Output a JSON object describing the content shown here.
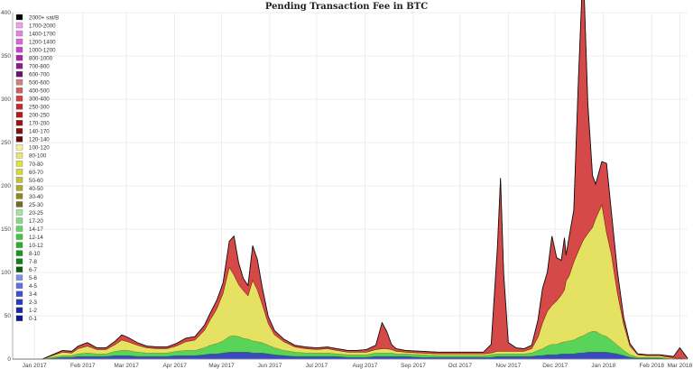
{
  "chart_data": {
    "type": "area",
    "title": "Pending Transaction Fee in BTC",
    "xlabel": "",
    "ylabel": "",
    "ylim": [
      0,
      400
    ],
    "y_ticks": [
      0,
      50,
      100,
      150,
      200,
      250,
      300,
      350,
      400
    ],
    "x_range": [
      "2017-01-01",
      "2018-03-10"
    ],
    "x_tick_labels": [
      {
        "date": "2017-01-15",
        "label": "Jan 2017"
      },
      {
        "date": "2017-02-15",
        "label": "Feb 2017"
      },
      {
        "date": "2017-03-15",
        "label": "Mar 2017"
      },
      {
        "date": "2017-04-15",
        "label": "Apr 2017"
      },
      {
        "date": "2017-05-15",
        "label": "May 2017"
      },
      {
        "date": "2017-06-15",
        "label": "Jun 2017"
      },
      {
        "date": "2017-07-15",
        "label": "Jul 2017"
      },
      {
        "date": "2017-08-15",
        "label": "Aug 2017"
      },
      {
        "date": "2017-09-15",
        "label": "Sep 2017"
      },
      {
        "date": "2017-10-15",
        "label": "Oct 2017"
      },
      {
        "date": "2017-11-15",
        "label": "Nov 2017"
      },
      {
        "date": "2017-12-15",
        "label": "Dec 2017"
      },
      {
        "date": "2018-01-15",
        "label": "Jan 2018"
      },
      {
        "date": "2018-02-15",
        "label": "Feb 2018"
      },
      {
        "date": "2018-03-05",
        "label": "Mar 2018"
      }
    ],
    "grid": true,
    "legend_position": "top-left",
    "series": [
      {
        "name": "2000+ sat/B",
        "color": "#000000"
      },
      {
        "name": "1700-2000",
        "color": "#f0a0f0"
      },
      {
        "name": "1400-1700",
        "color": "#e880e8"
      },
      {
        "name": "1200-1400",
        "color": "#e060e0"
      },
      {
        "name": "1000-1200",
        "color": "#d040d0"
      },
      {
        "name": "800-1000",
        "color": "#b020b0"
      },
      {
        "name": "700-800",
        "color": "#901890"
      },
      {
        "name": "600-700",
        "color": "#701070"
      },
      {
        "name": "500-600",
        "color": "#d08080"
      },
      {
        "name": "400-500",
        "color": "#d06060"
      },
      {
        "name": "300-400",
        "color": "#d04040"
      },
      {
        "name": "250-300",
        "color": "#c82828"
      },
      {
        "name": "200-250",
        "color": "#b81818"
      },
      {
        "name": "170-200",
        "color": "#a01010"
      },
      {
        "name": "140-170",
        "color": "#801010"
      },
      {
        "name": "120-140",
        "color": "#600c0c"
      },
      {
        "name": "100-120",
        "color": "#f0f0a0"
      },
      {
        "name": "80-100",
        "color": "#e8e870"
      },
      {
        "name": "70-80",
        "color": "#e0e040"
      },
      {
        "name": "60-70",
        "color": "#d8d830"
      },
      {
        "name": "50-60",
        "color": "#c8c030"
      },
      {
        "name": "40-50",
        "color": "#b0a828"
      },
      {
        "name": "30-40",
        "color": "#908820"
      },
      {
        "name": "25-30",
        "color": "#707018"
      },
      {
        "name": "20-25",
        "color": "#a0e8a0"
      },
      {
        "name": "17-20",
        "color": "#80e080"
      },
      {
        "name": "14-17",
        "color": "#60d860"
      },
      {
        "name": "12-14",
        "color": "#40c840"
      },
      {
        "name": "10-12",
        "color": "#28b028"
      },
      {
        "name": "8-10",
        "color": "#189818"
      },
      {
        "name": "7-8",
        "color": "#108010"
      },
      {
        "name": "6-7",
        "color": "#0a600a"
      },
      {
        "name": "5-6",
        "color": "#8090e8"
      },
      {
        "name": "4-5",
        "color": "#6070e0"
      },
      {
        "name": "3-4",
        "color": "#4050d0"
      },
      {
        "name": "2-3",
        "color": "#2838c0"
      },
      {
        "name": "1-2",
        "color": "#1828a8"
      },
      {
        "name": "0-1",
        "color": "#101890"
      }
    ],
    "x": [
      "2017-01-01",
      "2017-01-20",
      "2017-02-02",
      "2017-02-08",
      "2017-02-12",
      "2017-02-18",
      "2017-02-24",
      "2017-03-02",
      "2017-03-08",
      "2017-03-12",
      "2017-03-16",
      "2017-03-22",
      "2017-03-28",
      "2017-04-04",
      "2017-04-10",
      "2017-04-16",
      "2017-04-22",
      "2017-04-28",
      "2017-05-04",
      "2017-05-08",
      "2017-05-12",
      "2017-05-16",
      "2017-05-20",
      "2017-05-23",
      "2017-05-26",
      "2017-05-29",
      "2017-06-01",
      "2017-06-04",
      "2017-06-07",
      "2017-06-10",
      "2017-06-14",
      "2017-06-18",
      "2017-06-24",
      "2017-07-01",
      "2017-07-08",
      "2017-07-15",
      "2017-07-22",
      "2017-07-28",
      "2017-08-04",
      "2017-08-10",
      "2017-08-16",
      "2017-08-22",
      "2017-08-26",
      "2017-08-29",
      "2017-09-01",
      "2017-09-04",
      "2017-09-10",
      "2017-09-20",
      "2017-10-01",
      "2017-10-12",
      "2017-10-22",
      "2017-10-30",
      "2017-11-04",
      "2017-11-08",
      "2017-11-10",
      "2017-11-12",
      "2017-11-15",
      "2017-11-20",
      "2017-11-25",
      "2017-11-30",
      "2017-12-04",
      "2017-12-07",
      "2017-12-10",
      "2017-12-13",
      "2017-12-16",
      "2017-12-19",
      "2017-12-21",
      "2017-12-22",
      "2017-12-24",
      "2017-12-27",
      "2017-12-30",
      "2018-01-02",
      "2018-01-05",
      "2018-01-08",
      "2018-01-10",
      "2018-01-12",
      "2018-01-14",
      "2018-01-17",
      "2018-01-20",
      "2018-01-24",
      "2018-01-28",
      "2018-02-01",
      "2018-02-06",
      "2018-02-12",
      "2018-02-20",
      "2018-03-01",
      "2018-03-05",
      "2018-03-10"
    ],
    "layers": {
      "blue_0_8": [
        0,
        0,
        2,
        2,
        3,
        3,
        3,
        3,
        4,
        4,
        4,
        3,
        3,
        3,
        3,
        4,
        4,
        4,
        5,
        6,
        6,
        7,
        8,
        8,
        8,
        8,
        8,
        7,
        7,
        7,
        6,
        5,
        4,
        3,
        3,
        3,
        3,
        3,
        2,
        2,
        2,
        3,
        3,
        3,
        3,
        3,
        3,
        2,
        2,
        2,
        2,
        2,
        2,
        3,
        3,
        3,
        3,
        3,
        3,
        3,
        4,
        4,
        5,
        5,
        5,
        6,
        6,
        6,
        6,
        6,
        7,
        7,
        8,
        8,
        8,
        8,
        8,
        8,
        7,
        6,
        4,
        2,
        1,
        1,
        1,
        0,
        1,
        0
      ],
      "green_8_25": [
        0,
        0,
        2,
        2,
        3,
        4,
        3,
        3,
        5,
        6,
        6,
        5,
        4,
        4,
        4,
        5,
        6,
        6,
        8,
        10,
        12,
        14,
        18,
        19,
        18,
        16,
        15,
        14,
        13,
        12,
        10,
        8,
        6,
        5,
        4,
        4,
        4,
        3,
        3,
        3,
        3,
        4,
        4,
        4,
        4,
        3,
        3,
        3,
        2,
        2,
        2,
        2,
        3,
        3,
        3,
        3,
        3,
        3,
        3,
        4,
        6,
        8,
        10,
        12,
        12,
        13,
        14,
        14,
        15,
        16,
        18,
        20,
        22,
        24,
        24,
        22,
        20,
        18,
        15,
        10,
        6,
        3,
        1,
        1,
        1,
        0,
        0,
        0
      ],
      "yellow_25_120": [
        0,
        0,
        4,
        3,
        6,
        8,
        5,
        5,
        8,
        12,
        10,
        8,
        6,
        5,
        5,
        6,
        10,
        12,
        20,
        30,
        40,
        55,
        80,
        70,
        60,
        55,
        50,
        70,
        60,
        45,
        25,
        15,
        10,
        6,
        5,
        4,
        5,
        4,
        3,
        3,
        3,
        4,
        5,
        5,
        4,
        3,
        2,
        2,
        2,
        2,
        2,
        2,
        2,
        3,
        3,
        3,
        3,
        3,
        3,
        5,
        15,
        30,
        40,
        45,
        50,
        55,
        60,
        70,
        75,
        90,
        100,
        110,
        115,
        120,
        130,
        140,
        150,
        120,
        100,
        60,
        30,
        10,
        3,
        2,
        2,
        1,
        0,
        0
      ],
      "red_120_2000": [
        0,
        0,
        2,
        2,
        3,
        4,
        2,
        2,
        4,
        6,
        5,
        3,
        2,
        2,
        2,
        3,
        4,
        4,
        6,
        8,
        10,
        12,
        30,
        45,
        25,
        14,
        12,
        40,
        35,
        20,
        8,
        5,
        3,
        2,
        2,
        2,
        2,
        2,
        2,
        2,
        3,
        5,
        30,
        20,
        6,
        3,
        2,
        2,
        2,
        2,
        2,
        2,
        10,
        120,
        200,
        90,
        10,
        4,
        3,
        4,
        20,
        40,
        45,
        80,
        50,
        40,
        60,
        30,
        45,
        60,
        200,
        320,
        150,
        60,
        40,
        45,
        50,
        80,
        50,
        25,
        8,
        3,
        1,
        1,
        1,
        2,
        12,
        1
      ]
    }
  }
}
